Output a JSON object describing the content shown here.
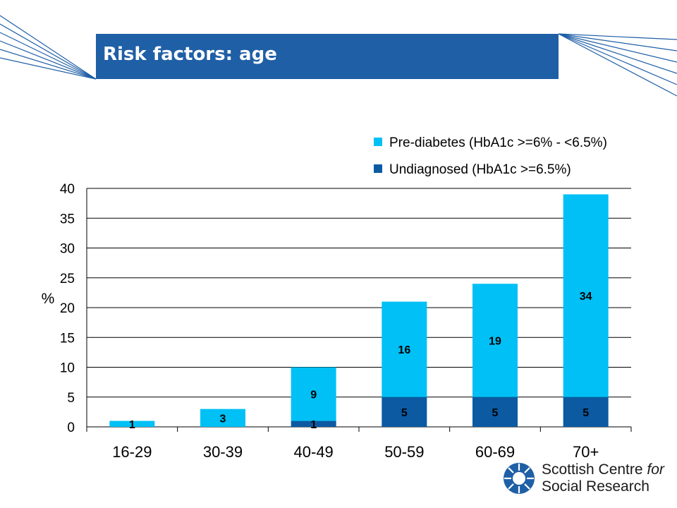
{
  "slide": {
    "title": "Risk factors: age"
  },
  "colors": {
    "title_bar": "#1f5fa6",
    "pre_diabetes": "#00c0f6",
    "undiagnosed": "#0b5aa2",
    "decor_lines": "#1f5fa6"
  },
  "logo": {
    "line1": "Scottish Centre ",
    "line1_italic": "for",
    "line2": "Social Research"
  },
  "chart_data": {
    "type": "bar",
    "stacked": true,
    "categories": [
      "16-29",
      "30-39",
      "40-49",
      "50-59",
      "60-69",
      "70+"
    ],
    "series": [
      {
        "name": "Undiagnosed (HbA1c >=6.5%)",
        "values": [
          0,
          0,
          1,
          5,
          5,
          5
        ],
        "labels": [
          "",
          "",
          "1",
          "5",
          "5",
          "5"
        ]
      },
      {
        "name": "Pre-diabetes (HbA1c >=6% - <6.5%)",
        "values": [
          1,
          3,
          9,
          16,
          19,
          34
        ],
        "labels": [
          "1",
          "3",
          "9",
          "16",
          "19",
          "34"
        ]
      }
    ],
    "legend_order": [
      "Pre-diabetes (HbA1c >=6% - <6.5%)",
      "Undiagnosed (HbA1c >=6.5%)"
    ],
    "ylabel": "%",
    "ylim": [
      0,
      40
    ],
    "yticks": [
      0,
      5,
      10,
      15,
      20,
      25,
      30,
      35,
      40
    ],
    "grid": true,
    "legend_position": "top-right"
  }
}
